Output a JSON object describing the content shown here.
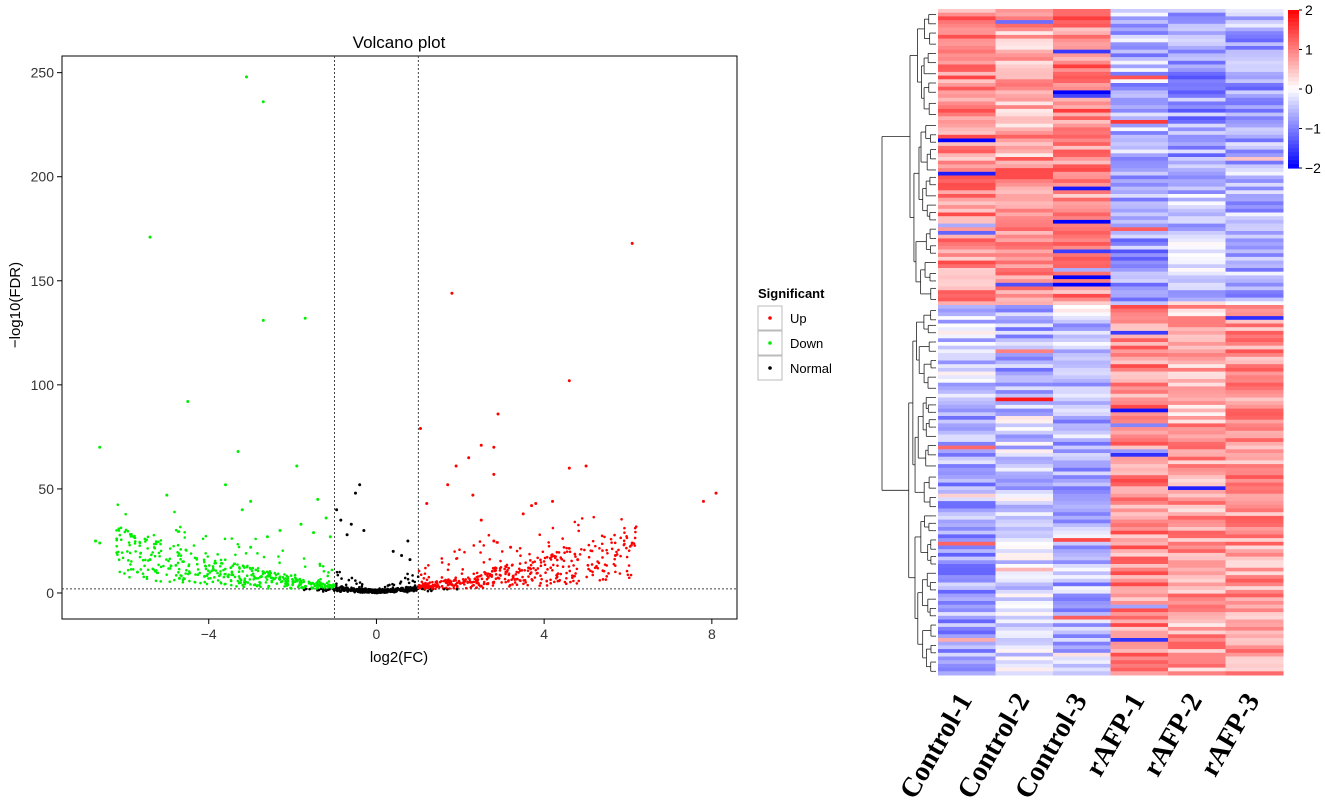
{
  "chart_data": [
    {
      "type": "scatter",
      "title": "Volcano plot",
      "xlabel": "log2(FC)",
      "ylabel": "−log10(FDR)",
      "xlim": [
        -7.5,
        8.6
      ],
      "ylim": [
        -12.5,
        258
      ],
      "x_ticks": [
        -4,
        0,
        4,
        8
      ],
      "x_tick_labels": [
        "−4",
        "0",
        "4",
        "8"
      ],
      "y_ticks": [
        0,
        50,
        100,
        150,
        200,
        250
      ],
      "y_tick_labels": [
        "0",
        "50",
        "100",
        "150",
        "200",
        "250"
      ],
      "thresholds": {
        "log2fc": [
          -1,
          1
        ],
        "neg_log10_fdr": 2
      },
      "legend": {
        "title": "Significant",
        "position": "right",
        "entries": [
          {
            "label": "Up",
            "color": "#ff0000"
          },
          {
            "label": "Down",
            "color": "#00ee00"
          },
          {
            "label": "Normal",
            "color": "#000000"
          }
        ]
      },
      "series": [
        {
          "name": "Down",
          "color": "#00ee00",
          "points": [
            [
              -3.1,
              248
            ],
            [
              -2.7,
              236
            ],
            [
              -5.4,
              171
            ],
            [
              -2.7,
              131
            ],
            [
              -1.7,
              132
            ],
            [
              -4.5,
              92
            ],
            [
              -3.3,
              68
            ],
            [
              -6.6,
              70
            ],
            [
              -1.9,
              61
            ],
            [
              -3.6,
              52
            ],
            [
              -5,
              47
            ],
            [
              -3,
              44
            ],
            [
              -3.2,
              40
            ],
            [
              -6.7,
              25
            ],
            [
              -6.6,
              24
            ],
            [
              -5.4,
              16
            ],
            [
              -5.7,
              10
            ],
            [
              -4.9,
              13
            ],
            [
              -4.7,
              7
            ],
            [
              -4.1,
              8
            ],
            [
              -1.4,
              45
            ],
            [
              -1.2,
              36
            ],
            [
              -1.8,
              33
            ],
            [
              -2.3,
              30
            ],
            [
              -2.6,
              27
            ],
            [
              -3.0,
              22
            ],
            [
              -1.5,
              29
            ],
            [
              -1.1,
              27
            ]
          ]
        },
        {
          "name": "Up",
          "color": "#ff0000",
          "points": [
            [
              6.1,
              168
            ],
            [
              1.8,
              144
            ],
            [
              4.6,
              102
            ],
            [
              2.9,
              86
            ],
            [
              1.05,
              79
            ],
            [
              2.5,
              71
            ],
            [
              2.8,
              70
            ],
            [
              2.2,
              65
            ],
            [
              1.9,
              61
            ],
            [
              4.6,
              60
            ],
            [
              5,
              61
            ],
            [
              2.8,
              57
            ],
            [
              1.7,
              52
            ],
            [
              2.3,
              47
            ],
            [
              3.7,
              42
            ],
            [
              3.8,
              43
            ],
            [
              4.2,
              44
            ],
            [
              1.2,
              43
            ],
            [
              7.8,
              44
            ],
            [
              8.1,
              48
            ],
            [
              3.5,
              38
            ],
            [
              2.5,
              35
            ],
            [
              6.1,
              24
            ],
            [
              5.7,
              18
            ],
            [
              4.8,
              16
            ],
            [
              3.2,
              22
            ],
            [
              2.8,
              25
            ]
          ]
        },
        {
          "name": "Normal",
          "color": "#000000",
          "points": [
            [
              -0.4,
              52
            ],
            [
              -0.5,
              48
            ],
            [
              0.75,
              25
            ],
            [
              -0.85,
              35
            ],
            [
              -0.6,
              33
            ],
            [
              -0.3,
              30
            ],
            [
              0.4,
              20
            ],
            [
              0.6,
              18
            ],
            [
              0.8,
              16
            ],
            [
              -0.7,
              28
            ],
            [
              -0.95,
              40
            ]
          ]
        }
      ]
    },
    {
      "type": "heatmap",
      "columns": [
        "Control-1",
        "Control-2",
        "Control-3",
        "rAFP-1",
        "rAFP-2",
        "rAFP-3"
      ],
      "colorbar": {
        "min": -2,
        "max": 2,
        "ticks": [
          "2",
          "1",
          "0",
          "−1",
          "−2"
        ],
        "low_color": "#0000ff",
        "mid_color": "#ffffff",
        "high_color": "#ff0000"
      },
      "block_means": [
        {
          "rows": [
            0,
            39
          ],
          "values": [
            1.0,
            0.7,
            1.0,
            -0.6,
            -0.8,
            -0.7
          ]
        },
        {
          "rows": [
            40,
            79
          ],
          "values": [
            0.9,
            0.9,
            0.9,
            -0.8,
            -0.4,
            -0.6
          ]
        },
        {
          "rows": [
            80,
            109
          ],
          "values": [
            -0.4,
            -0.6,
            -0.5,
            0.9,
            0.6,
            0.9
          ]
        },
        {
          "rows": [
            110,
            179
          ],
          "values": [
            -0.7,
            -0.4,
            -0.6,
            0.9,
            0.7,
            0.8
          ]
        }
      ]
    }
  ]
}
